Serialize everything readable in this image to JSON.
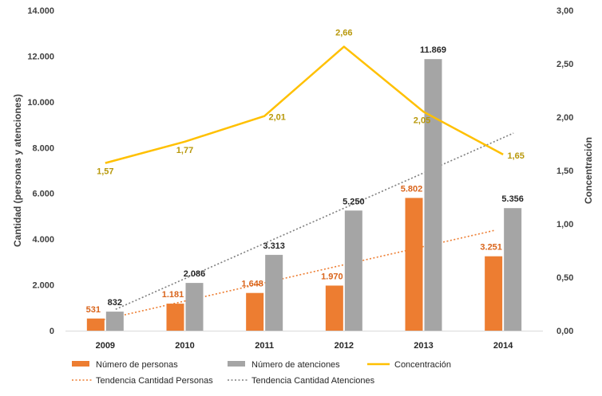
{
  "chart_data": {
    "type": "bar",
    "categories": [
      "2009",
      "2010",
      "2011",
      "2012",
      "2013",
      "2014"
    ],
    "series": [
      {
        "name": "Número de personas",
        "type": "bar",
        "axis": "left",
        "color": "#ed7d31",
        "values": [
          531,
          1181,
          1648,
          1970,
          5802,
          3251
        ],
        "labels": [
          "531",
          "1.181",
          "1.648",
          "1.970",
          "5.802",
          "3.251"
        ]
      },
      {
        "name": "Número de atenciones",
        "type": "bar",
        "axis": "left",
        "color": "#a5a5a5",
        "values": [
          832,
          2086,
          3313,
          5250,
          11869,
          5356
        ],
        "labels": [
          "832",
          "2.086",
          "3.313",
          "5.250",
          "11.869",
          "5.356"
        ]
      },
      {
        "name": "Concentración",
        "type": "line",
        "axis": "right",
        "color": "#ffc000",
        "values": [
          1.57,
          1.77,
          2.01,
          2.66,
          2.05,
          1.65
        ],
        "labels": [
          "1,57",
          "1,77",
          "2,01",
          "2,66",
          "2,05",
          "1,65"
        ]
      }
    ],
    "trendlines": [
      {
        "name": "Tendencia Cantidad Personas",
        "of": "Número de personas",
        "color": "#ed7d31",
        "style": "dotted"
      },
      {
        "name": "Tendencia Cantidad Atenciones",
        "of": "Número de atenciones",
        "color": "#7f7f7f",
        "style": "dotted"
      }
    ],
    "y_left": {
      "label": "Cantidad (personas y atenciones)",
      "min": 0,
      "max": 14000,
      "step": 2000,
      "tick_labels": [
        "0",
        "2.000",
        "4.000",
        "6.000",
        "8.000",
        "10.000",
        "12.000",
        "14.000"
      ]
    },
    "y_right": {
      "label": "Concentración",
      "min": 0,
      "max": 3,
      "step": 0.5,
      "tick_labels": [
        "0,00",
        "0,50",
        "1,00",
        "1,50",
        "2,00",
        "2,50",
        "3,00"
      ]
    },
    "grid": false,
    "legend_position": "bottom"
  }
}
